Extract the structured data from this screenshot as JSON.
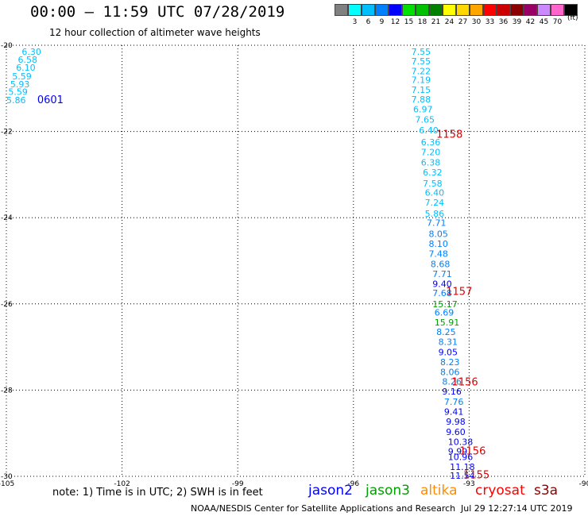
{
  "header": {
    "title": "00:00 – 11:59 UTC 07/28/2019",
    "subtitle": "12 hour collection of altimeter wave heights"
  },
  "legend": {
    "unit": "(ft)",
    "swatches": [
      {
        "color": "#808080",
        "label": ""
      },
      {
        "color": "#00ffff",
        "label": "3"
      },
      {
        "color": "#00bfff",
        "label": "6"
      },
      {
        "color": "#0080ff",
        "label": "9"
      },
      {
        "color": "#0000ff",
        "label": "12"
      },
      {
        "color": "#00e000",
        "label": "15"
      },
      {
        "color": "#00c000",
        "label": "18"
      },
      {
        "color": "#008000",
        "label": "21"
      },
      {
        "color": "#ffff00",
        "label": "24"
      },
      {
        "color": "#ffd700",
        "label": "27"
      },
      {
        "color": "#ffa500",
        "label": "30"
      },
      {
        "color": "#ff0000",
        "label": "33"
      },
      {
        "color": "#cc0000",
        "label": "36"
      },
      {
        "color": "#8b0000",
        "label": "39"
      },
      {
        "color": "#990066",
        "label": "42"
      },
      {
        "color": "#cc88ff",
        "label": "45"
      },
      {
        "color": "#ff66cc",
        "label": "70"
      },
      {
        "color": "#000000",
        "label": ""
      }
    ]
  },
  "footer": {
    "note": "note: 1) Time is in UTC; 2) SWH is in feet",
    "satellites": [
      {
        "name": "jason2",
        "color": "#0000ff"
      },
      {
        "name": "jason3",
        "color": "#00a000"
      },
      {
        "name": "altika",
        "color": "#ff8c00"
      },
      {
        "name": "cryosat",
        "color": "#ff0000"
      },
      {
        "name": "s3a",
        "color": "#8b0000"
      }
    ],
    "credit": "NOAA/NESDIS Center for Satellite Applications and Research",
    "timestamp": "Jul 29 12:27:14 UTC 2019"
  },
  "chart_data": {
    "type": "scatter",
    "title": "00:00 – 11:59 UTC 07/28/2019",
    "subtitle": "12 hour collection of altimeter wave heights",
    "xlim": [
      -105,
      -90
    ],
    "ylim": [
      -30,
      -20
    ],
    "xticks": [
      "-105",
      "-102",
      "-99",
      "-96",
      "-93",
      "-90"
    ],
    "yticks": [
      "-20",
      "-22",
      "-24",
      "-26",
      "-28",
      "-30"
    ],
    "grid": true,
    "value_colors": {
      "cyan": "#00bfff",
      "mid": "#0080ff",
      "blue": "#0000ff",
      "green": "#00a000"
    },
    "tracks": [
      {
        "time_label": "0601",
        "time_color": "#0000ff",
        "time_pos": {
          "lon": -104.2,
          "lat": -21.25
        },
        "points": [
          {
            "lon": -104.6,
            "lat": -20.15,
            "value": "6.30",
            "color": "cyan"
          },
          {
            "lon": -104.7,
            "lat": -20.33,
            "value": "6.58",
            "color": "cyan"
          },
          {
            "lon": -104.75,
            "lat": -20.52,
            "value": "6.10",
            "color": "cyan"
          },
          {
            "lon": -104.85,
            "lat": -20.72,
            "value": "5.59",
            "color": "cyan"
          },
          {
            "lon": -104.9,
            "lat": -20.9,
            "value": "5.93",
            "color": "cyan"
          },
          {
            "lon": -104.95,
            "lat": -21.08,
            "value": "5.59",
            "color": "cyan"
          },
          {
            "lon": -105.0,
            "lat": -21.27,
            "value": "5.86",
            "color": "cyan"
          }
        ]
      },
      {
        "time_label": "1158",
        "time_color": "#dd0000",
        "time_pos": {
          "lon": -93.85,
          "lat": -22.05
        },
        "points": [
          {
            "lon": -94.5,
            "lat": -20.15,
            "value": "7.55",
            "color": "cyan"
          },
          {
            "lon": -94.5,
            "lat": -20.37,
            "value": "7.55",
            "color": "cyan"
          },
          {
            "lon": -94.5,
            "lat": -20.6,
            "value": "7.22",
            "color": "cyan"
          },
          {
            "lon": -94.5,
            "lat": -20.8,
            "value": "7.19",
            "color": "cyan"
          },
          {
            "lon": -94.5,
            "lat": -21.03,
            "value": "7.15",
            "color": "cyan"
          },
          {
            "lon": -94.5,
            "lat": -21.25,
            "value": "7.88",
            "color": "cyan"
          },
          {
            "lon": -94.45,
            "lat": -21.48,
            "value": "6.97",
            "color": "cyan"
          },
          {
            "lon": -94.4,
            "lat": -21.72,
            "value": "7.65",
            "color": "cyan"
          },
          {
            "lon": -94.3,
            "lat": -21.97,
            "value": "6.40",
            "color": "cyan"
          }
        ]
      },
      {
        "time_label": "1157",
        "time_color": "#dd0000",
        "time_pos": {
          "lon": -93.6,
          "lat": -25.7
        },
        "points": [
          {
            "lon": -94.25,
            "lat": -22.25,
            "value": "6.36",
            "color": "cyan"
          },
          {
            "lon": -94.25,
            "lat": -22.48,
            "value": "7.20",
            "color": "cyan"
          },
          {
            "lon": -94.25,
            "lat": -22.72,
            "value": "6.38",
            "color": "cyan"
          },
          {
            "lon": -94.2,
            "lat": -22.95,
            "value": "6.32",
            "color": "cyan"
          },
          {
            "lon": -94.2,
            "lat": -23.2,
            "value": "7.58",
            "color": "cyan"
          },
          {
            "lon": -94.15,
            "lat": -23.42,
            "value": "6.40",
            "color": "cyan"
          },
          {
            "lon": -94.15,
            "lat": -23.65,
            "value": "7.24",
            "color": "cyan"
          },
          {
            "lon": -94.15,
            "lat": -23.9,
            "value": "5.86",
            "color": "cyan"
          },
          {
            "lon": -94.1,
            "lat": -24.12,
            "value": "7.71",
            "color": "mid"
          },
          {
            "lon": -94.05,
            "lat": -24.37,
            "value": "8.05",
            "color": "mid"
          },
          {
            "lon": -94.05,
            "lat": -24.6,
            "value": "8.10",
            "color": "mid"
          },
          {
            "lon": -94.05,
            "lat": -24.83,
            "value": "7.48",
            "color": "mid"
          },
          {
            "lon": -94.0,
            "lat": -25.07,
            "value": "8.68",
            "color": "mid"
          },
          {
            "lon": -93.95,
            "lat": -25.3,
            "value": "7.71",
            "color": "mid"
          },
          {
            "lon": -93.95,
            "lat": -25.53,
            "value": "9.40",
            "color": "blue"
          },
          {
            "lon": -93.95,
            "lat": -25.75,
            "value": "7.68",
            "color": "mid"
          }
        ]
      },
      {
        "time_label": "1156",
        "time_color": "#dd0000",
        "time_pos": {
          "lon": -93.45,
          "lat": -27.8
        },
        "points": [
          {
            "lon": -93.95,
            "lat": -26.0,
            "value": "15.17",
            "color": "green"
          },
          {
            "lon": -93.9,
            "lat": -26.2,
            "value": "6.69",
            "color": "mid"
          },
          {
            "lon": -93.9,
            "lat": -26.43,
            "value": "15.91",
            "color": "green"
          },
          {
            "lon": -93.85,
            "lat": -26.65,
            "value": "8.25",
            "color": "mid"
          },
          {
            "lon": -93.8,
            "lat": -26.88,
            "value": "8.31",
            "color": "mid"
          },
          {
            "lon": -93.8,
            "lat": -27.12,
            "value": "9.05",
            "color": "blue"
          },
          {
            "lon": -93.75,
            "lat": -27.35,
            "value": "8.23",
            "color": "mid"
          },
          {
            "lon": -93.75,
            "lat": -27.58,
            "value": "8.06",
            "color": "mid"
          },
          {
            "lon": -93.7,
            "lat": -27.8,
            "value": "8.26",
            "color": "mid"
          }
        ]
      },
      {
        "time_label": "1156",
        "time_color": "#dd0000",
        "time_pos": {
          "lon": -93.25,
          "lat": -29.4
        },
        "points": [
          {
            "lon": -93.7,
            "lat": -28.03,
            "value": "9.16",
            "color": "blue"
          },
          {
            "lon": -93.65,
            "lat": -28.27,
            "value": "7.76",
            "color": "mid"
          },
          {
            "lon": -93.65,
            "lat": -28.5,
            "value": "9.41",
            "color": "blue"
          },
          {
            "lon": -93.6,
            "lat": -28.73,
            "value": "9.98",
            "color": "blue"
          },
          {
            "lon": -93.6,
            "lat": -28.97,
            "value": "9.60",
            "color": "blue"
          },
          {
            "lon": -93.55,
            "lat": -29.2,
            "value": "10.38",
            "color": "blue"
          },
          {
            "lon": -93.55,
            "lat": -29.42,
            "value": "9.99",
            "color": "blue"
          }
        ]
      },
      {
        "time_label": "1155",
        "time_color": "#dd0000",
        "time_pos": {
          "lon": -93.15,
          "lat": -29.95
        },
        "points": [
          {
            "lon": -93.55,
            "lat": -29.55,
            "value": "10.96",
            "color": "blue"
          },
          {
            "lon": -93.5,
            "lat": -29.78,
            "value": "11.18",
            "color": "blue"
          },
          {
            "lon": -93.5,
            "lat": -29.98,
            "value": "11.54",
            "color": "blue"
          }
        ]
      }
    ]
  }
}
